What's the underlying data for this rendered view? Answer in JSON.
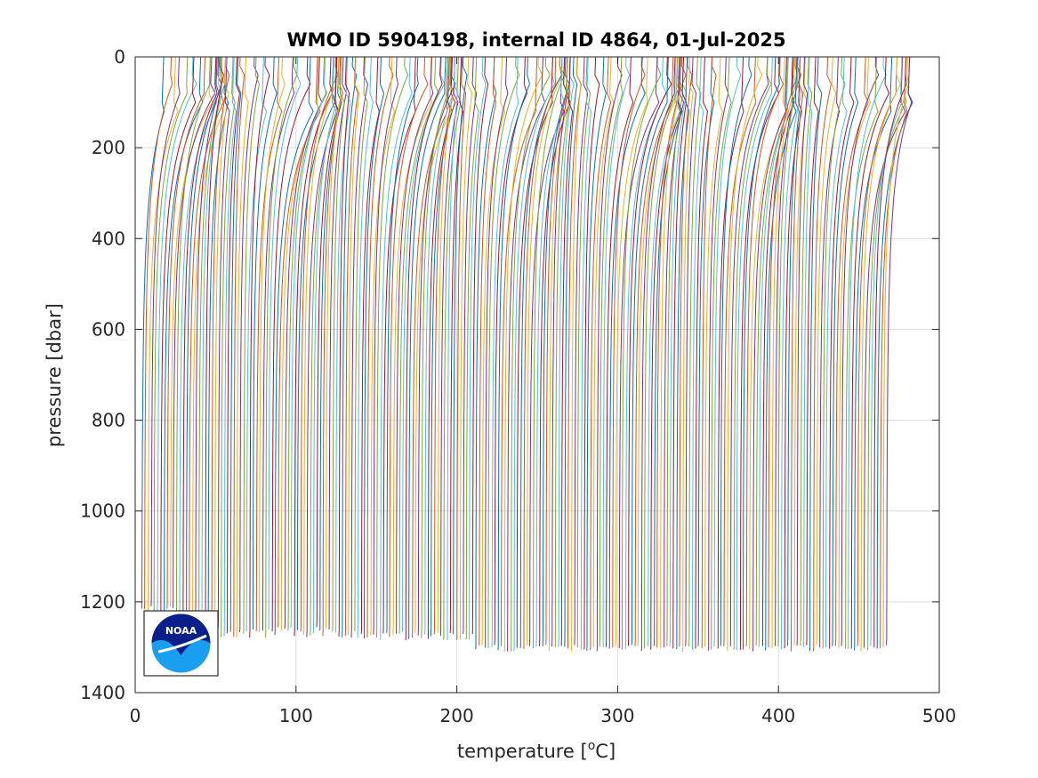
{
  "chart_data": {
    "type": "line",
    "title": "WMO ID 5904198, internal ID 4864, 01-Jul-2025",
    "xlabel": "temperature [",
    "xlabel_unit_sup": "o",
    "xlabel_unit_tail": "C]",
    "ylabel": "pressure [dbar]",
    "xlim": [
      0,
      500
    ],
    "ylim": [
      0,
      1400
    ],
    "y_reversed": true,
    "grid": true,
    "xticks": [
      "0",
      "100",
      "200",
      "300",
      "400",
      "500"
    ],
    "yticks": [
      "0",
      "200",
      "400",
      "600",
      "800",
      "1000",
      "1200",
      "1400"
    ],
    "xtick_values": [
      0,
      100,
      200,
      300,
      400,
      500
    ],
    "ytick_values": [
      0,
      200,
      400,
      600,
      800,
      1000,
      1200,
      1400
    ],
    "series_description": "waterfall of ~235 temperature profiles, each offset by about 2 degC in x; surface values ~0-30, deep values ~3-5 plus offset",
    "n_profiles": 235,
    "profile_offset_step": 1.98,
    "line_colors": [
      "#0072BD",
      "#D95319",
      "#EDB120",
      "#7E2F8E",
      "#77AC30",
      "#4DBEEE",
      "#A2142F"
    ],
    "logo": {
      "text": "NOAA"
    }
  }
}
